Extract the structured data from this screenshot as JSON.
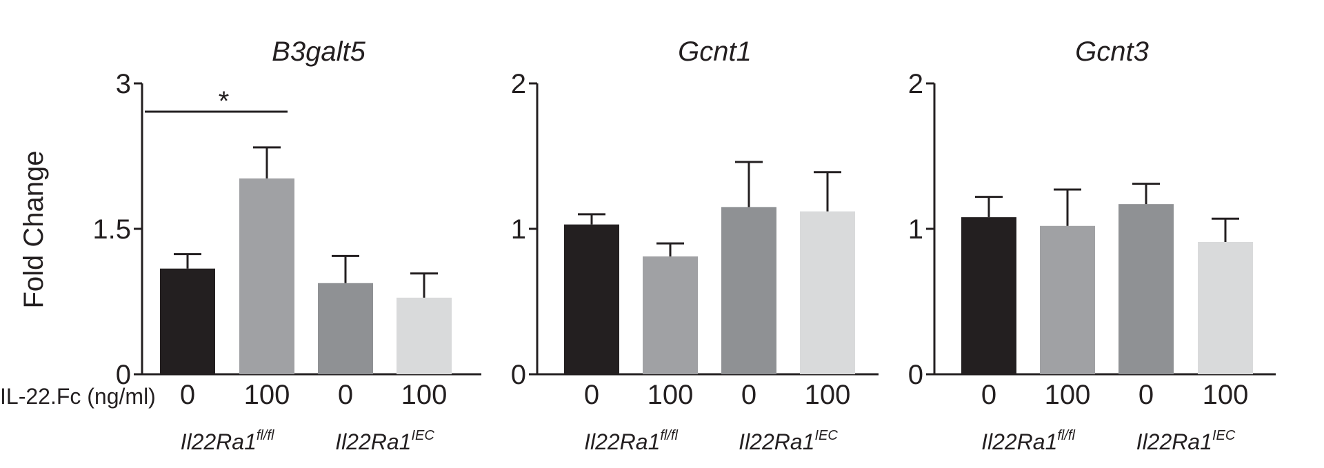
{
  "y_label": "Fold Change",
  "row_label": "IL-22.Fc (ng/ml)",
  "genotype_groups": [
    {
      "base": "Il22Ra1",
      "sup": "fl/fl"
    },
    {
      "base": "Il22Ra1",
      "sup": "IEC"
    }
  ],
  "bar_colors": [
    "#231f20",
    "#a0a1a4",
    "#8f9194",
    "#d9dadb"
  ],
  "significance": {
    "symbol": "*",
    "panel": 0,
    "from_bar": 0,
    "to_bar": 1
  },
  "chart_data": [
    {
      "type": "bar",
      "title": "B3galt5",
      "categories": [
        "0",
        "100",
        "0",
        "100"
      ],
      "values": [
        1.09,
        2.02,
        0.94,
        0.79
      ],
      "errors": [
        0.15,
        0.32,
        0.28,
        0.25
      ],
      "ylim": [
        0,
        3
      ],
      "yticks": [
        "0",
        "1.5",
        "3"
      ],
      "ytick_values": [
        0,
        1.5,
        3
      ]
    },
    {
      "type": "bar",
      "title": "Gcnt1",
      "categories": [
        "0",
        "100",
        "0",
        "100"
      ],
      "values": [
        1.03,
        0.81,
        1.15,
        1.12
      ],
      "errors": [
        0.07,
        0.09,
        0.31,
        0.27
      ],
      "ylim": [
        0,
        2
      ],
      "yticks": [
        "0",
        "1",
        "2"
      ],
      "ytick_values": [
        0,
        1,
        2
      ]
    },
    {
      "type": "bar",
      "title": "Gcnt3",
      "categories": [
        "0",
        "100",
        "0",
        "100"
      ],
      "values": [
        1.08,
        1.02,
        1.17,
        0.91
      ],
      "errors": [
        0.14,
        0.25,
        0.14,
        0.16
      ],
      "ylim": [
        0,
        2
      ],
      "yticks": [
        "0",
        "1",
        "2"
      ],
      "ytick_values": [
        0,
        1,
        2
      ]
    }
  ]
}
